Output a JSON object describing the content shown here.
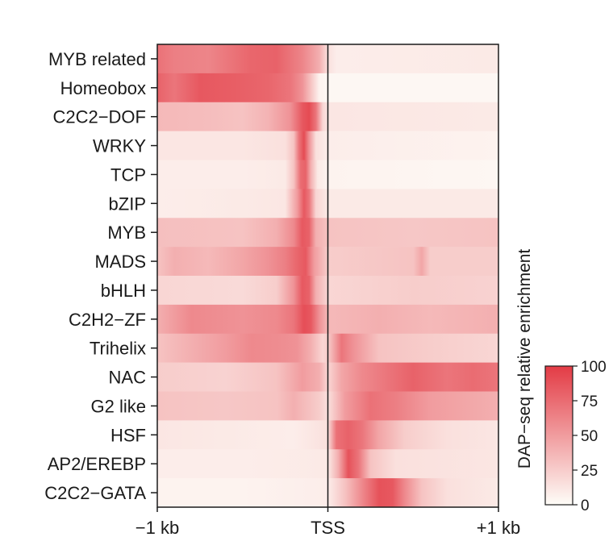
{
  "chart_data": {
    "type": "heatmap",
    "x_tick_labels": [
      "−1 kb",
      "TSS",
      "+1 kb"
    ],
    "x_range_kb": [
      -1,
      1
    ],
    "rows": [
      {
        "label": "MYB related",
        "profile": [
          [
            -1,
            72
          ],
          [
            -0.9,
            65
          ],
          [
            -0.7,
            62
          ],
          [
            -0.45,
            78
          ],
          [
            -0.3,
            80
          ],
          [
            -0.15,
            62
          ],
          [
            -0.05,
            40
          ],
          [
            0,
            15
          ],
          [
            0.05,
            8
          ],
          [
            1,
            10
          ]
        ]
      },
      {
        "label": "Homeobox",
        "profile": [
          [
            -1,
            80
          ],
          [
            -0.9,
            70
          ],
          [
            -0.75,
            85
          ],
          [
            -0.55,
            82
          ],
          [
            -0.35,
            78
          ],
          [
            -0.22,
            70
          ],
          [
            -0.15,
            55
          ],
          [
            -0.1,
            30
          ],
          [
            -0.05,
            5
          ],
          [
            0,
            3
          ],
          [
            1,
            3
          ]
        ]
      },
      {
        "label": "C2C2−DOF",
        "profile": [
          [
            -1,
            35
          ],
          [
            -0.7,
            33
          ],
          [
            -0.5,
            30
          ],
          [
            -0.35,
            38
          ],
          [
            -0.22,
            55
          ],
          [
            -0.15,
            85
          ],
          [
            -0.11,
            92
          ],
          [
            -0.07,
            70
          ],
          [
            -0.03,
            20
          ],
          [
            0,
            12
          ],
          [
            1,
            10
          ]
        ]
      },
      {
        "label": "WRKY",
        "profile": [
          [
            -1,
            12
          ],
          [
            -0.5,
            12
          ],
          [
            -0.25,
            15
          ],
          [
            -0.2,
            30
          ],
          [
            -0.17,
            70
          ],
          [
            -0.14,
            92
          ],
          [
            -0.11,
            55
          ],
          [
            -0.07,
            15
          ],
          [
            0,
            8
          ],
          [
            1,
            5
          ]
        ]
      },
      {
        "label": "TCP",
        "profile": [
          [
            -1,
            8
          ],
          [
            -0.5,
            8
          ],
          [
            -0.25,
            10
          ],
          [
            -0.2,
            30
          ],
          [
            -0.16,
            75
          ],
          [
            -0.13,
            80
          ],
          [
            -0.1,
            40
          ],
          [
            -0.06,
            10
          ],
          [
            0,
            5
          ],
          [
            1,
            3
          ]
        ]
      },
      {
        "label": "bZIP",
        "profile": [
          [
            -1,
            8
          ],
          [
            -0.5,
            10
          ],
          [
            -0.25,
            12
          ],
          [
            -0.18,
            50
          ],
          [
            -0.14,
            85
          ],
          [
            -0.11,
            70
          ],
          [
            -0.07,
            20
          ],
          [
            0,
            10
          ],
          [
            1,
            10
          ]
        ]
      },
      {
        "label": "MYB",
        "profile": [
          [
            -1,
            32
          ],
          [
            -0.5,
            30
          ],
          [
            -0.3,
            40
          ],
          [
            -0.2,
            60
          ],
          [
            -0.15,
            85
          ],
          [
            -0.11,
            80
          ],
          [
            -0.07,
            40
          ],
          [
            0,
            30
          ],
          [
            0.5,
            28
          ],
          [
            1,
            30
          ]
        ]
      },
      {
        "label": "MADS",
        "profile": [
          [
            -1,
            30
          ],
          [
            -0.9,
            40
          ],
          [
            -0.7,
            35
          ],
          [
            -0.5,
            45
          ],
          [
            -0.35,
            55
          ],
          [
            -0.25,
            65
          ],
          [
            -0.18,
            78
          ],
          [
            -0.13,
            85
          ],
          [
            -0.08,
            50
          ],
          [
            0,
            25
          ],
          [
            0.5,
            30
          ],
          [
            0.55,
            45
          ],
          [
            0.6,
            25
          ],
          [
            1,
            25
          ]
        ]
      },
      {
        "label": "bHLH",
        "profile": [
          [
            -1,
            20
          ],
          [
            -0.5,
            18
          ],
          [
            -0.3,
            25
          ],
          [
            -0.2,
            55
          ],
          [
            -0.15,
            85
          ],
          [
            -0.11,
            80
          ],
          [
            -0.07,
            40
          ],
          [
            0,
            20
          ],
          [
            0.5,
            25
          ],
          [
            1,
            22
          ]
        ]
      },
      {
        "label": "C2H2−ZF",
        "profile": [
          [
            -1,
            40
          ],
          [
            -0.8,
            60
          ],
          [
            -0.5,
            55
          ],
          [
            -0.3,
            60
          ],
          [
            -0.2,
            70
          ],
          [
            -0.14,
            90
          ],
          [
            -0.1,
            85
          ],
          [
            -0.05,
            55
          ],
          [
            0,
            35
          ],
          [
            0.3,
            40
          ],
          [
            0.6,
            35
          ],
          [
            1,
            40
          ]
        ]
      },
      {
        "label": "Trihelix",
        "profile": [
          [
            -1,
            30
          ],
          [
            -0.8,
            40
          ],
          [
            -0.6,
            50
          ],
          [
            -0.45,
            60
          ],
          [
            -0.3,
            58
          ],
          [
            -0.18,
            55
          ],
          [
            -0.1,
            40
          ],
          [
            -0.03,
            20
          ],
          [
            0,
            25
          ],
          [
            0.08,
            70
          ],
          [
            0.15,
            55
          ],
          [
            0.3,
            30
          ],
          [
            0.6,
            25
          ],
          [
            1,
            20
          ]
        ]
      },
      {
        "label": "NAC",
        "profile": [
          [
            -1,
            25
          ],
          [
            -0.6,
            22
          ],
          [
            -0.3,
            30
          ],
          [
            -0.15,
            50
          ],
          [
            -0.05,
            40
          ],
          [
            0,
            20
          ],
          [
            0.08,
            45
          ],
          [
            0.2,
            60
          ],
          [
            0.35,
            70
          ],
          [
            0.5,
            80
          ],
          [
            0.7,
            70
          ],
          [
            0.85,
            75
          ],
          [
            1,
            70
          ]
        ]
      },
      {
        "label": "G2 like",
        "profile": [
          [
            -1,
            30
          ],
          [
            -0.6,
            28
          ],
          [
            -0.3,
            30
          ],
          [
            -0.2,
            40
          ],
          [
            -0.05,
            25
          ],
          [
            0,
            15
          ],
          [
            0.1,
            50
          ],
          [
            0.25,
            72
          ],
          [
            0.4,
            65
          ],
          [
            0.6,
            50
          ],
          [
            0.8,
            45
          ],
          [
            1,
            40
          ]
        ]
      },
      {
        "label": "HSF",
        "profile": [
          [
            -1,
            12
          ],
          [
            -0.6,
            10
          ],
          [
            -0.2,
            8
          ],
          [
            0,
            15
          ],
          [
            0.05,
            72
          ],
          [
            0.12,
            80
          ],
          [
            0.2,
            70
          ],
          [
            0.3,
            45
          ],
          [
            0.45,
            25
          ],
          [
            0.7,
            15
          ],
          [
            1,
            12
          ]
        ]
      },
      {
        "label": "AP2/EREBP",
        "profile": [
          [
            -1,
            8
          ],
          [
            -0.5,
            8
          ],
          [
            0,
            10
          ],
          [
            0.06,
            40
          ],
          [
            0.12,
            88
          ],
          [
            0.18,
            70
          ],
          [
            0.25,
            30
          ],
          [
            0.4,
            15
          ],
          [
            1,
            12
          ]
        ]
      },
      {
        "label": "C2C2−GATA",
        "profile": [
          [
            -1,
            5
          ],
          [
            -0.5,
            5
          ],
          [
            0,
            8
          ],
          [
            0.1,
            30
          ],
          [
            0.2,
            60
          ],
          [
            0.3,
            88
          ],
          [
            0.38,
            85
          ],
          [
            0.45,
            60
          ],
          [
            0.55,
            30
          ],
          [
            0.7,
            15
          ],
          [
            1,
            10
          ]
        ]
      }
    ],
    "colorbar": {
      "label": "DAP−seq relative enrichment",
      "range": [
        0,
        100
      ],
      "ticks": [
        "0",
        "25",
        "50",
        "75",
        "100"
      ],
      "colors": [
        "#fefdf8",
        "#e33b45"
      ]
    }
  }
}
